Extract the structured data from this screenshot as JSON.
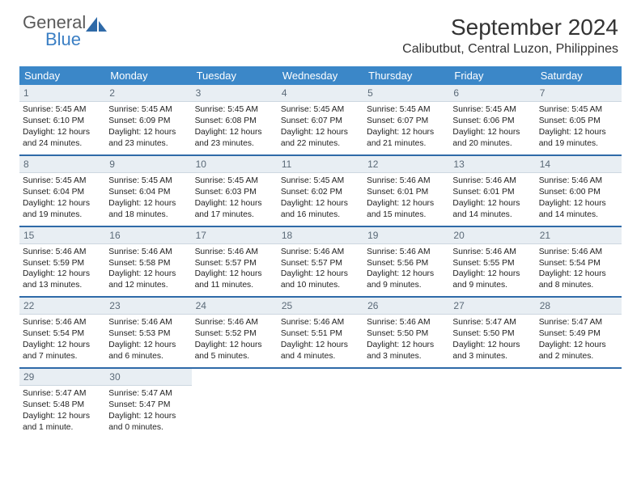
{
  "brand": {
    "line1": "General",
    "line2": "Blue"
  },
  "title": "September 2024",
  "location": "Calibutbut, Central Luzon, Philippines",
  "header_bg": "#3b87c8",
  "accent_rule": "#2f6aa8",
  "daynum_bg": "#e8eef3",
  "weekdays": [
    "Sunday",
    "Monday",
    "Tuesday",
    "Wednesday",
    "Thursday",
    "Friday",
    "Saturday"
  ],
  "weeks": [
    [
      {
        "n": "1",
        "sr": "Sunrise: 5:45 AM",
        "ss": "Sunset: 6:10 PM",
        "d1": "Daylight: 12 hours",
        "d2": "and 24 minutes."
      },
      {
        "n": "2",
        "sr": "Sunrise: 5:45 AM",
        "ss": "Sunset: 6:09 PM",
        "d1": "Daylight: 12 hours",
        "d2": "and 23 minutes."
      },
      {
        "n": "3",
        "sr": "Sunrise: 5:45 AM",
        "ss": "Sunset: 6:08 PM",
        "d1": "Daylight: 12 hours",
        "d2": "and 23 minutes."
      },
      {
        "n": "4",
        "sr": "Sunrise: 5:45 AM",
        "ss": "Sunset: 6:07 PM",
        "d1": "Daylight: 12 hours",
        "d2": "and 22 minutes."
      },
      {
        "n": "5",
        "sr": "Sunrise: 5:45 AM",
        "ss": "Sunset: 6:07 PM",
        "d1": "Daylight: 12 hours",
        "d2": "and 21 minutes."
      },
      {
        "n": "6",
        "sr": "Sunrise: 5:45 AM",
        "ss": "Sunset: 6:06 PM",
        "d1": "Daylight: 12 hours",
        "d2": "and 20 minutes."
      },
      {
        "n": "7",
        "sr": "Sunrise: 5:45 AM",
        "ss": "Sunset: 6:05 PM",
        "d1": "Daylight: 12 hours",
        "d2": "and 19 minutes."
      }
    ],
    [
      {
        "n": "8",
        "sr": "Sunrise: 5:45 AM",
        "ss": "Sunset: 6:04 PM",
        "d1": "Daylight: 12 hours",
        "d2": "and 19 minutes."
      },
      {
        "n": "9",
        "sr": "Sunrise: 5:45 AM",
        "ss": "Sunset: 6:04 PM",
        "d1": "Daylight: 12 hours",
        "d2": "and 18 minutes."
      },
      {
        "n": "10",
        "sr": "Sunrise: 5:45 AM",
        "ss": "Sunset: 6:03 PM",
        "d1": "Daylight: 12 hours",
        "d2": "and 17 minutes."
      },
      {
        "n": "11",
        "sr": "Sunrise: 5:45 AM",
        "ss": "Sunset: 6:02 PM",
        "d1": "Daylight: 12 hours",
        "d2": "and 16 minutes."
      },
      {
        "n": "12",
        "sr": "Sunrise: 5:46 AM",
        "ss": "Sunset: 6:01 PM",
        "d1": "Daylight: 12 hours",
        "d2": "and 15 minutes."
      },
      {
        "n": "13",
        "sr": "Sunrise: 5:46 AM",
        "ss": "Sunset: 6:01 PM",
        "d1": "Daylight: 12 hours",
        "d2": "and 14 minutes."
      },
      {
        "n": "14",
        "sr": "Sunrise: 5:46 AM",
        "ss": "Sunset: 6:00 PM",
        "d1": "Daylight: 12 hours",
        "d2": "and 14 minutes."
      }
    ],
    [
      {
        "n": "15",
        "sr": "Sunrise: 5:46 AM",
        "ss": "Sunset: 5:59 PM",
        "d1": "Daylight: 12 hours",
        "d2": "and 13 minutes."
      },
      {
        "n": "16",
        "sr": "Sunrise: 5:46 AM",
        "ss": "Sunset: 5:58 PM",
        "d1": "Daylight: 12 hours",
        "d2": "and 12 minutes."
      },
      {
        "n": "17",
        "sr": "Sunrise: 5:46 AM",
        "ss": "Sunset: 5:57 PM",
        "d1": "Daylight: 12 hours",
        "d2": "and 11 minutes."
      },
      {
        "n": "18",
        "sr": "Sunrise: 5:46 AM",
        "ss": "Sunset: 5:57 PM",
        "d1": "Daylight: 12 hours",
        "d2": "and 10 minutes."
      },
      {
        "n": "19",
        "sr": "Sunrise: 5:46 AM",
        "ss": "Sunset: 5:56 PM",
        "d1": "Daylight: 12 hours",
        "d2": "and 9 minutes."
      },
      {
        "n": "20",
        "sr": "Sunrise: 5:46 AM",
        "ss": "Sunset: 5:55 PM",
        "d1": "Daylight: 12 hours",
        "d2": "and 9 minutes."
      },
      {
        "n": "21",
        "sr": "Sunrise: 5:46 AM",
        "ss": "Sunset: 5:54 PM",
        "d1": "Daylight: 12 hours",
        "d2": "and 8 minutes."
      }
    ],
    [
      {
        "n": "22",
        "sr": "Sunrise: 5:46 AM",
        "ss": "Sunset: 5:54 PM",
        "d1": "Daylight: 12 hours",
        "d2": "and 7 minutes."
      },
      {
        "n": "23",
        "sr": "Sunrise: 5:46 AM",
        "ss": "Sunset: 5:53 PM",
        "d1": "Daylight: 12 hours",
        "d2": "and 6 minutes."
      },
      {
        "n": "24",
        "sr": "Sunrise: 5:46 AM",
        "ss": "Sunset: 5:52 PM",
        "d1": "Daylight: 12 hours",
        "d2": "and 5 minutes."
      },
      {
        "n": "25",
        "sr": "Sunrise: 5:46 AM",
        "ss": "Sunset: 5:51 PM",
        "d1": "Daylight: 12 hours",
        "d2": "and 4 minutes."
      },
      {
        "n": "26",
        "sr": "Sunrise: 5:46 AM",
        "ss": "Sunset: 5:50 PM",
        "d1": "Daylight: 12 hours",
        "d2": "and 3 minutes."
      },
      {
        "n": "27",
        "sr": "Sunrise: 5:47 AM",
        "ss": "Sunset: 5:50 PM",
        "d1": "Daylight: 12 hours",
        "d2": "and 3 minutes."
      },
      {
        "n": "28",
        "sr": "Sunrise: 5:47 AM",
        "ss": "Sunset: 5:49 PM",
        "d1": "Daylight: 12 hours",
        "d2": "and 2 minutes."
      }
    ],
    [
      {
        "n": "29",
        "sr": "Sunrise: 5:47 AM",
        "ss": "Sunset: 5:48 PM",
        "d1": "Daylight: 12 hours",
        "d2": "and 1 minute."
      },
      {
        "n": "30",
        "sr": "Sunrise: 5:47 AM",
        "ss": "Sunset: 5:47 PM",
        "d1": "Daylight: 12 hours",
        "d2": "and 0 minutes."
      },
      null,
      null,
      null,
      null,
      null
    ]
  ]
}
